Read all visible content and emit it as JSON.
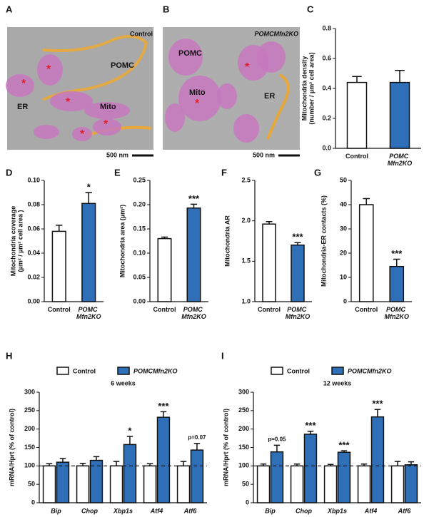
{
  "images": [
    {
      "letter": "A",
      "caption": "Control",
      "labels": [
        "POMC",
        "ER",
        "Mito"
      ],
      "scale_bar": "500 nm"
    },
    {
      "letter": "B",
      "caption": "POMCMfn2KO",
      "labels": [
        "POMC",
        "Mito",
        "ER"
      ],
      "scale_bar": "500 nm"
    }
  ],
  "chart_data": [
    {
      "type": "bar",
      "letter": "C",
      "ylabel": [
        "Mitochondria density",
        "(number / µm² cell area)"
      ],
      "categories": [
        "Control",
        "POMC Mfn2KO"
      ],
      "values": [
        0.44,
        0.44
      ],
      "errors": [
        0.04,
        0.08
      ],
      "colors": [
        "#ffffff",
        "#2e6fb7"
      ],
      "value_annotations": [
        null,
        null
      ],
      "ylim": [
        0,
        0.8
      ],
      "yticks": [
        {
          "value": 0,
          "label": "0.0"
        },
        0.2,
        0.4,
        0.6,
        0.8
      ]
    },
    {
      "type": "bar",
      "letter": "D",
      "ylabel": [
        "Mitochondria coverage",
        "(µm² / µm² cell area )"
      ],
      "categories": [
        "Control",
        "POMC Mfn2KO"
      ],
      "values": [
        0.058,
        0.081
      ],
      "errors": [
        0.005,
        0.009
      ],
      "colors": [
        "#ffffff",
        "#2e6fb7"
      ],
      "value_annotations": [
        null,
        "*"
      ],
      "ylim": [
        0,
        0.1
      ],
      "yticks": [
        {
          "value": 0,
          "label": "0.00"
        },
        0.02,
        0.04,
        0.06,
        0.08,
        {
          "value": 0.1,
          "label": "0.10"
        }
      ]
    },
    {
      "type": "bar",
      "letter": "E",
      "ylabel": [
        "Mitochondria area (µm²)"
      ],
      "categories": [
        "Control",
        "POMC Mfn2KO"
      ],
      "values": [
        0.13,
        0.193
      ],
      "errors": [
        0.003,
        0.008
      ],
      "colors": [
        "#ffffff",
        "#2e6fb7"
      ],
      "value_annotations": [
        null,
        "***"
      ],
      "ylim": [
        0,
        0.25
      ],
      "yticks": [
        {
          "value": 0,
          "label": "0.00"
        },
        0.05,
        {
          "value": 0.1,
          "label": "0.10"
        },
        0.15,
        {
          "value": 0.2,
          "label": "0.20"
        },
        0.25
      ]
    },
    {
      "type": "bar",
      "letter": "F",
      "ylabel": [
        "Mitochondria AR"
      ],
      "categories": [
        "Control",
        "POMC Mfn2KO"
      ],
      "values": [
        1.96,
        1.7
      ],
      "errors": [
        0.03,
        0.03
      ],
      "colors": [
        "#ffffff",
        "#2e6fb7"
      ],
      "value_annotations": [
        null,
        "***"
      ],
      "ylim": [
        1,
        2.5
      ],
      "yticks": [
        {
          "value": 1,
          "label": "1.0"
        },
        1.5,
        {
          "value": 2,
          "label": "2.0"
        },
        2.5
      ]
    },
    {
      "type": "bar",
      "letter": "G",
      "ylabel": [
        "Mitochondria-ER contacts (%)"
      ],
      "categories": [
        "Control",
        "POMC Mfn2KO"
      ],
      "values": [
        40,
        14.5
      ],
      "errors": [
        2.5,
        3
      ],
      "colors": [
        "#ffffff",
        "#2e6fb7"
      ],
      "value_annotations": [
        null,
        "***"
      ],
      "ylim": [
        0,
        50
      ],
      "yticks": [
        0,
        10,
        20,
        30,
        40,
        50
      ]
    },
    {
      "type": "grouped_bar",
      "letter": "H",
      "title": "6 weeks",
      "ylabel": [
        "mRNA/Hprt (% of control)"
      ],
      "categories": [
        "Bip",
        "Chop",
        "Xbp1s",
        "Atf4",
        "Atf6"
      ],
      "reference_line": 100,
      "series": [
        {
          "name": "Control",
          "color": "#ffffff",
          "values": [
            100,
            100,
            100,
            100,
            100
          ],
          "errors": [
            6,
            7,
            12,
            6,
            12
          ],
          "value_annotations": [
            null,
            null,
            null,
            null,
            null
          ]
        },
        {
          "name": "POMCMfn2KO",
          "color": "#2e6fb7",
          "values": [
            110,
            115,
            158,
            232,
            143
          ],
          "errors": [
            10,
            10,
            22,
            15,
            18
          ],
          "value_annotations": [
            null,
            null,
            "*",
            "***",
            "p=0.07"
          ]
        }
      ],
      "ylim": [
        0,
        300
      ],
      "yticks": [
        0,
        50,
        100,
        150,
        200,
        250,
        300
      ]
    },
    {
      "type": "grouped_bar",
      "letter": "I",
      "title": "12 weeks",
      "ylabel": [
        "mRNA/Hprt (% of control)"
      ],
      "categories": [
        "Bip",
        "Chop",
        "Xbp1s",
        "Atf4",
        "Atf6"
      ],
      "reference_line": 100,
      "series": [
        {
          "name": "Control",
          "color": "#ffffff",
          "values": [
            100,
            100,
            100,
            100,
            100
          ],
          "errors": [
            5,
            5,
            4,
            5,
            12
          ],
          "value_annotations": [
            null,
            null,
            null,
            null,
            null
          ]
        },
        {
          "name": "POMCMfn2KO",
          "color": "#2e6fb7",
          "values": [
            138,
            186,
            137,
            233,
            103
          ],
          "errors": [
            18,
            8,
            4,
            20,
            8
          ],
          "value_annotations": [
            "p=0.05",
            "***",
            "***",
            "***",
            null
          ]
        }
      ],
      "ylim": [
        0,
        300
      ],
      "yticks": [
        0,
        50,
        100,
        150,
        200,
        250,
        300
      ]
    }
  ]
}
